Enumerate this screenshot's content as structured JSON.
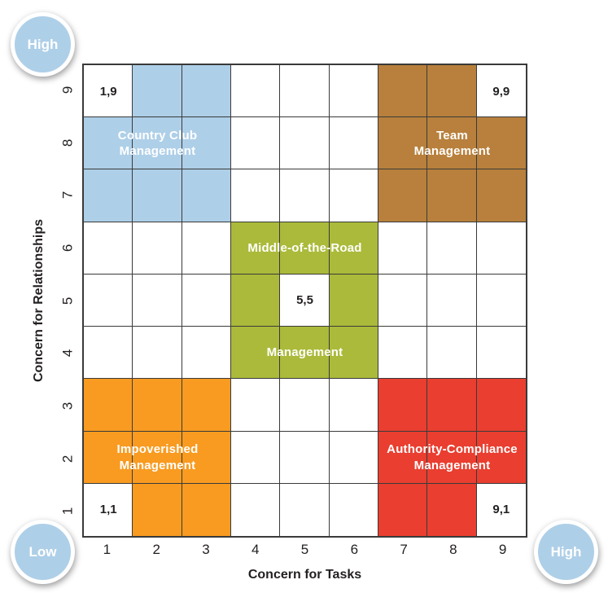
{
  "figure": "Managerial Grid",
  "colors": {
    "blue": "#AECFE8",
    "brown": "#B8803C",
    "green": "#ABBA3A",
    "orange": "#F89B20",
    "red": "#E93E30",
    "grid_line": "#3A3A3A",
    "label_text": "#FFFFFF",
    "tick_text": "#231F20",
    "circle_fill": "#AECFE8"
  },
  "axes": {
    "x": {
      "label": "Concern for Tasks",
      "ticks": [
        "1",
        "2",
        "3",
        "4",
        "5",
        "6",
        "7",
        "8",
        "9"
      ]
    },
    "y": {
      "label": "Concern for Relationships",
      "ticks_top_to_bottom": [
        "9",
        "8",
        "7",
        "6",
        "5",
        "4",
        "3",
        "2",
        "1"
      ]
    }
  },
  "corners": {
    "top_left": {
      "label": "High"
    },
    "bottom_left": {
      "label": "Low"
    },
    "bottom_right": {
      "label": "High"
    }
  },
  "grid": {
    "rows": 9,
    "cols": 9,
    "regions": [
      {
        "name": "country-club-management",
        "color_key": "blue",
        "cells": [
          [
            2,
            9
          ],
          [
            3,
            9
          ],
          [
            1,
            8
          ],
          [
            2,
            8
          ],
          [
            3,
            8
          ],
          [
            1,
            7
          ],
          [
            2,
            7
          ],
          [
            3,
            7
          ]
        ]
      },
      {
        "name": "team-management",
        "color_key": "brown",
        "cells": [
          [
            7,
            9
          ],
          [
            8,
            9
          ],
          [
            7,
            8
          ],
          [
            8,
            8
          ],
          [
            9,
            8
          ],
          [
            7,
            7
          ],
          [
            8,
            7
          ],
          [
            9,
            7
          ]
        ]
      },
      {
        "name": "middle-of-the-road-management",
        "color_key": "green",
        "cells": [
          [
            4,
            6
          ],
          [
            5,
            6
          ],
          [
            6,
            6
          ],
          [
            4,
            5
          ],
          [
            6,
            5
          ],
          [
            4,
            4
          ],
          [
            5,
            4
          ],
          [
            6,
            4
          ]
        ]
      },
      {
        "name": "impoverished-management",
        "color_key": "orange",
        "cells": [
          [
            1,
            3
          ],
          [
            2,
            3
          ],
          [
            3,
            3
          ],
          [
            1,
            2
          ],
          [
            2,
            2
          ],
          [
            3,
            2
          ],
          [
            2,
            1
          ],
          [
            3,
            1
          ]
        ]
      },
      {
        "name": "authority-compliance-management",
        "color_key": "red",
        "cells": [
          [
            7,
            3
          ],
          [
            8,
            3
          ],
          [
            9,
            3
          ],
          [
            7,
            2
          ],
          [
            8,
            2
          ],
          [
            9,
            2
          ],
          [
            7,
            1
          ],
          [
            8,
            1
          ]
        ]
      }
    ],
    "region_labels": [
      {
        "lines": [
          "Country Club",
          "Management"
        ],
        "col_start": 1,
        "col_span": 3,
        "row": 8
      },
      {
        "lines": [
          "Team",
          "Management"
        ],
        "col_start": 7,
        "col_span": 3,
        "row": 8
      },
      {
        "lines": [
          "Middle-of-the-Road"
        ],
        "col_start": 4,
        "col_span": 3,
        "row": 6
      },
      {
        "lines": [
          "Management"
        ],
        "col_start": 4,
        "col_span": 3,
        "row": 4
      },
      {
        "lines": [
          "Impoverished",
          "Management"
        ],
        "col_start": 1,
        "col_span": 3,
        "row": 2
      },
      {
        "lines": [
          "Authority-Compliance",
          "Management"
        ],
        "col_start": 7,
        "col_span": 3,
        "row": 2
      }
    ],
    "cell_labels": [
      {
        "text": "1,9",
        "col": 1,
        "row": 9
      },
      {
        "text": "9,9",
        "col": 9,
        "row": 9
      },
      {
        "text": "5,5",
        "col": 5,
        "row": 5
      },
      {
        "text": "1,1",
        "col": 1,
        "row": 1
      },
      {
        "text": "9,1",
        "col": 9,
        "row": 1
      }
    ]
  }
}
